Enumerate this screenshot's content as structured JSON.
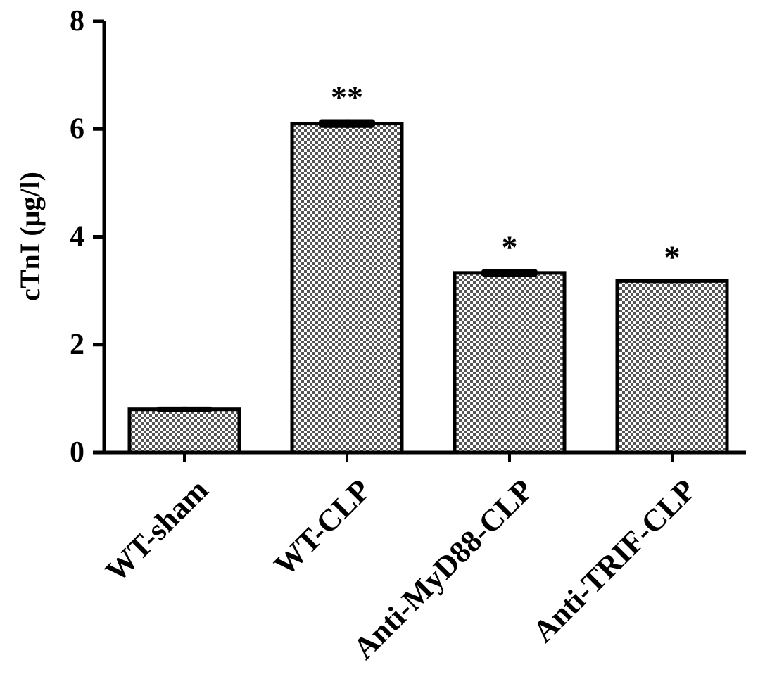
{
  "chart_data": {
    "type": "bar",
    "title": "",
    "xlabel": "",
    "ylabel": "cTnI (μg/l)",
    "ylim": [
      0,
      8
    ],
    "yticks": [
      0,
      2,
      4,
      6,
      8
    ],
    "categories": [
      "WT-sham",
      "WT-CLP",
      "Anti-MyD88-CLP",
      "Anti-TRIF-CLP"
    ],
    "values": [
      0.8,
      6.1,
      3.33,
      3.18
    ],
    "errors": [
      0.05,
      0.08,
      0.07,
      0.04
    ],
    "annotations": [
      "",
      "**",
      "*",
      "*"
    ],
    "grid": false,
    "legend": "none",
    "bar_fill": "checkered",
    "colors": {
      "bar_fill_dark": "#555555",
      "bar_fill_light": "#ffffff",
      "stroke": "#000000"
    }
  }
}
